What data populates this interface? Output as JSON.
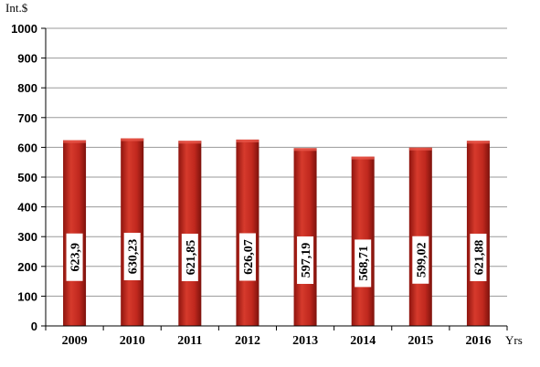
{
  "chart_data": {
    "type": "bar",
    "ylabel": "Int.$",
    "xlabel": "Yrs",
    "categories": [
      "2009",
      "2010",
      "2011",
      "2012",
      "2013",
      "2014",
      "2015",
      "2016"
    ],
    "values": [
      623.9,
      630.23,
      621.85,
      626.07,
      597.19,
      568.71,
      599.02,
      621.88
    ],
    "data_labels": [
      "623,9",
      "630,23",
      "621,85",
      "626,07",
      "597,19",
      "568,71",
      "599,02",
      "621,88"
    ],
    "ylim": [
      0,
      1000
    ],
    "yticks": [
      0,
      100,
      200,
      300,
      400,
      500,
      600,
      700,
      800,
      900,
      1000
    ],
    "grid": true,
    "bar_color": "#c0281e"
  }
}
